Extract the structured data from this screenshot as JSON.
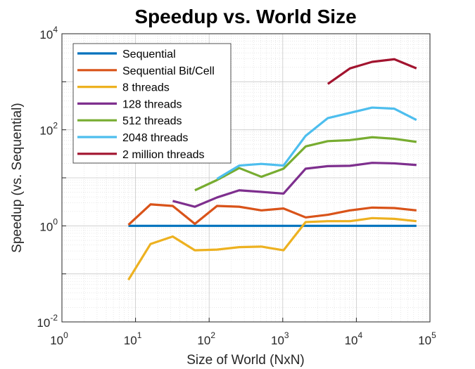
{
  "chart_data": {
    "type": "line",
    "title": "Speedup vs. World Size",
    "xlabel": "Size of World (NxN)",
    "ylabel": "Speedup (vs. Sequential)",
    "xscale": "log",
    "yscale": "log",
    "xlim": [
      1,
      100000
    ],
    "ylim": [
      0.01,
      10000
    ],
    "grid": "on (major and minor)",
    "legend_placement": "top-left",
    "x_ticks": [
      {
        "base": "10",
        "exp": "0",
        "value": 1
      },
      {
        "base": "10",
        "exp": "1",
        "value": 10
      },
      {
        "base": "10",
        "exp": "2",
        "value": 100
      },
      {
        "base": "10",
        "exp": "3",
        "value": 1000
      },
      {
        "base": "10",
        "exp": "4",
        "value": 10000
      },
      {
        "base": "10",
        "exp": "5",
        "value": 100000
      }
    ],
    "y_ticks": [
      {
        "base": "10",
        "exp": "-2",
        "value": 0.01
      },
      {
        "base": "10",
        "exp": "0",
        "value": 1
      },
      {
        "base": "10",
        "exp": "2",
        "value": 100
      },
      {
        "base": "10",
        "exp": "4",
        "value": 10000
      }
    ],
    "series": [
      {
        "name": "Sequential",
        "color": "#0072BD",
        "x": [
          8,
          16,
          32,
          64,
          128,
          256,
          512,
          1024,
          2048,
          4096,
          8192,
          16384,
          32768,
          65536
        ],
        "y": [
          1,
          1,
          1,
          1,
          1,
          1,
          1,
          1,
          1,
          1,
          1,
          1,
          1,
          1
        ]
      },
      {
        "name": "Sequential Bit/Cell",
        "color": "#D95319",
        "x": [
          8,
          16,
          32,
          64,
          128,
          256,
          512,
          1024,
          2048,
          4096,
          8192,
          16384,
          32768,
          65536
        ],
        "y": [
          1.05,
          2.8,
          2.6,
          1.1,
          2.6,
          2.5,
          2.1,
          2.3,
          1.5,
          1.7,
          2.1,
          2.4,
          2.35,
          2.1
        ]
      },
      {
        "name": "8 threads",
        "color": "#EDB120",
        "x": [
          8,
          16,
          32,
          64,
          128,
          256,
          512,
          1024,
          2048,
          4096,
          8192,
          16384,
          32768,
          65536
        ],
        "y": [
          0.075,
          0.42,
          0.6,
          0.31,
          0.32,
          0.36,
          0.37,
          0.31,
          1.2,
          1.25,
          1.25,
          1.45,
          1.4,
          1.25
        ]
      },
      {
        "name": "128 threads",
        "color": "#7E2F8E",
        "x": [
          32,
          64,
          128,
          256,
          512,
          1024,
          2048,
          4096,
          8192,
          16384,
          32768,
          65536
        ],
        "y": [
          3.3,
          2.5,
          3.9,
          5.5,
          5.1,
          4.7,
          15.5,
          17.5,
          17.8,
          20.5,
          20,
          18.5
        ]
      },
      {
        "name": "512 threads",
        "color": "#77AC30",
        "x": [
          64,
          128,
          256,
          512,
          1024,
          2048,
          4096,
          8192,
          16384,
          32768,
          65536
        ],
        "y": [
          5.5,
          9,
          16,
          10.5,
          15.5,
          45,
          58,
          61,
          70,
          65,
          56
        ]
      },
      {
        "name": "2048 threads",
        "color": "#4DBEEE",
        "x": [
          128,
          256,
          512,
          1024,
          2048,
          4096,
          8192,
          16384,
          32768,
          65536
        ],
        "y": [
          9.5,
          18,
          19.5,
          18,
          75,
          175,
          225,
          290,
          275,
          160
        ]
      },
      {
        "name": "2 million threads",
        "color": "#A2142F",
        "x": [
          4096,
          8192,
          16384,
          32768,
          65536
        ],
        "y": [
          900,
          1900,
          2600,
          2950,
          1900
        ]
      }
    ]
  }
}
